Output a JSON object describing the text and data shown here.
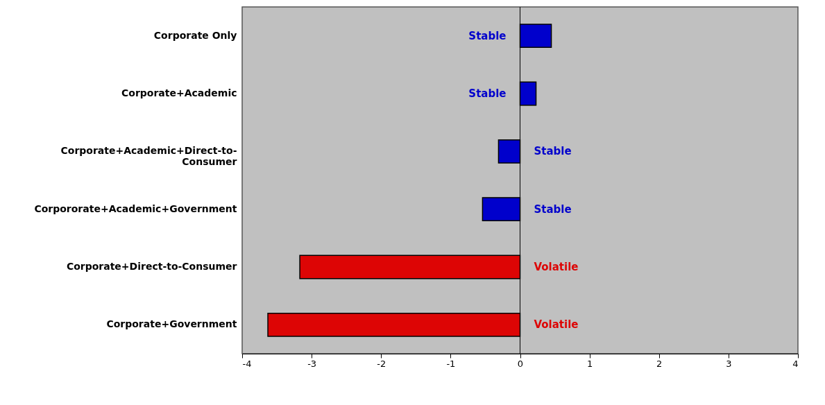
{
  "chart_data": {
    "type": "bar",
    "orientation": "horizontal",
    "categories": [
      "Corporate Only",
      "Corporate+Academic",
      "Corporate+Academic+Direct-to-Consumer",
      "Corpororate+Academic+Government",
      "Corporate+Direct-to-Consumer",
      "Corporate+Government"
    ],
    "values": [
      0.45,
      0.23,
      -0.31,
      -0.54,
      -3.17,
      -3.63
    ],
    "colors": [
      "#0000cc",
      "#0000cc",
      "#0000cc",
      "#0000cc",
      "#dd0505",
      "#dd0505"
    ],
    "xlim": [
      -4,
      4
    ],
    "xticks": [
      -4,
      -3,
      -2,
      -1,
      0,
      1,
      2,
      3,
      4
    ],
    "annotations": [
      "Stable",
      "Stable",
      "Stable",
      "Stable",
      "Volatile",
      "Volatile"
    ]
  }
}
